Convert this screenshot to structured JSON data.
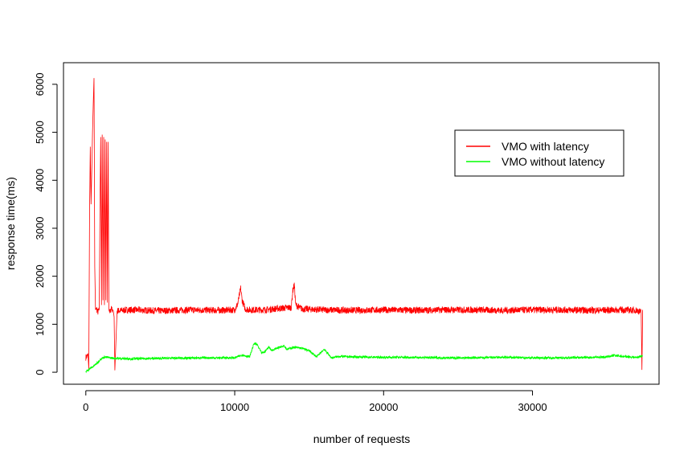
{
  "chart_data": {
    "type": "line",
    "title": "",
    "xlabel": "number of requests",
    "ylabel": "response time(ms)",
    "xlim": [
      -1500,
      38500
    ],
    "ylim": [
      -250,
      6450
    ],
    "x_ticks": [
      0,
      10000,
      20000,
      30000
    ],
    "y_ticks": [
      0,
      1000,
      2000,
      3000,
      4000,
      5000,
      6000
    ],
    "grid": false,
    "legend_position": "top-right",
    "series": [
      {
        "name": "VMO with latency",
        "color": "#ff0000",
        "x": [
          0,
          150,
          200,
          250,
          300,
          350,
          400,
          450,
          500,
          550,
          600,
          650,
          700,
          800,
          900,
          950,
          1000,
          1050,
          1100,
          1150,
          1200,
          1250,
          1300,
          1350,
          1400,
          1450,
          1500,
          1550,
          1600,
          1700,
          1800,
          1850,
          1900,
          1950,
          2100,
          3000,
          5000,
          7000,
          9000,
          10000,
          10200,
          10400,
          10500,
          10700,
          11000,
          12000,
          13000,
          13800,
          13900,
          14000,
          14100,
          14500,
          16000,
          18000,
          20000,
          22000,
          24000,
          26000,
          28000,
          30000,
          32000,
          34000,
          36000,
          37000,
          37300,
          37350,
          37400
        ],
        "y": [
          310,
          350,
          60,
          3300,
          4700,
          3500,
          4200,
          5000,
          5600,
          6130,
          2200,
          1300,
          1350,
          1250,
          1300,
          3500,
          4900,
          1400,
          4950,
          1500,
          4900,
          1400,
          4850,
          1500,
          4800,
          1450,
          4800,
          1300,
          1250,
          1320,
          1300,
          1280,
          1150,
          40,
          1280,
          1300,
          1280,
          1300,
          1290,
          1300,
          1420,
          1750,
          1500,
          1320,
          1300,
          1300,
          1330,
          1350,
          1700,
          1820,
          1400,
          1320,
          1300,
          1290,
          1300,
          1290,
          1300,
          1300,
          1290,
          1300,
          1300,
          1290,
          1300,
          1290,
          1250,
          50,
          1300
        ],
        "noise_amplitude": 70
      },
      {
        "name": "VMO without latency",
        "color": "#00ff00",
        "x": [
          0,
          200,
          500,
          800,
          1000,
          1300,
          1600,
          2000,
          3000,
          5000,
          8000,
          10000,
          10500,
          11000,
          11300,
          11500,
          11800,
          12000,
          12300,
          12500,
          12800,
          13000,
          13300,
          13500,
          14000,
          14500,
          15000,
          15500,
          16000,
          16500,
          17000,
          18000,
          20000,
          22000,
          24000,
          26000,
          28000,
          30000,
          32000,
          34000,
          35000,
          35500,
          36000,
          37000,
          37400
        ],
        "y": [
          10,
          60,
          120,
          200,
          280,
          320,
          300,
          290,
          280,
          290,
          300,
          300,
          360,
          320,
          600,
          580,
          400,
          420,
          530,
          450,
          500,
          520,
          560,
          480,
          520,
          500,
          450,
          320,
          480,
          300,
          330,
          320,
          310,
          310,
          300,
          300,
          310,
          300,
          300,
          310,
          320,
          350,
          330,
          310,
          340
        ],
        "noise_amplitude": 25
      }
    ]
  }
}
